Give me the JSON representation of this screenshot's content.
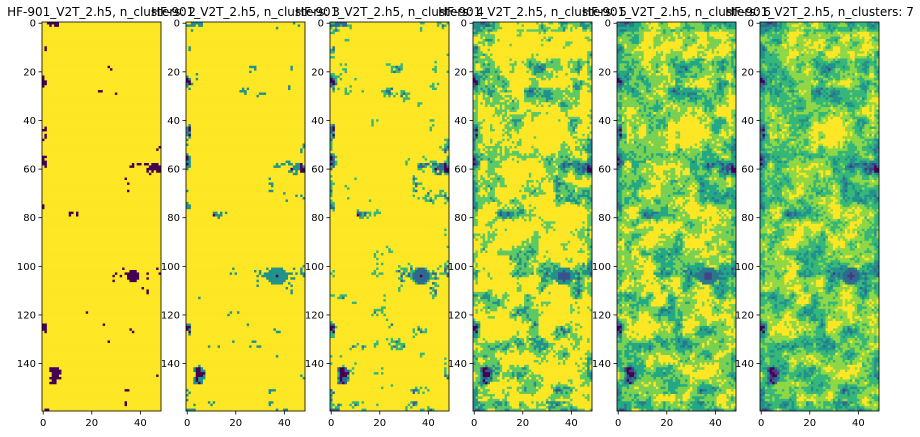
{
  "chart_data": [
    {
      "type": "heatmap",
      "title": "HF-901_V2T_2.h5, n_clusters: 2",
      "n_clusters": 2,
      "xlim": [
        0,
        49
      ],
      "ylim": [
        160,
        0
      ],
      "xticks": [
        "0",
        "20",
        "40"
      ],
      "yticks": [
        "0",
        "20",
        "40",
        "60",
        "80",
        "100",
        "120",
        "140"
      ],
      "palette": [
        "#440154",
        "#fde725"
      ]
    },
    {
      "type": "heatmap",
      "title": "HF-901_V2T_2.h5, n_clusters: 3",
      "n_clusters": 3,
      "xlim": [
        0,
        49
      ],
      "ylim": [
        160,
        0
      ],
      "xticks": [
        "0",
        "20",
        "40"
      ],
      "yticks": [
        "0",
        "20",
        "40",
        "60",
        "80",
        "100",
        "120",
        "140"
      ],
      "palette": [
        "#440154",
        "#21918c",
        "#fde725"
      ]
    },
    {
      "type": "heatmap",
      "title": "HF-901_V2T_2.h5, n_clusters: 4",
      "n_clusters": 4,
      "xlim": [
        0,
        49
      ],
      "ylim": [
        160,
        0
      ],
      "xticks": [
        "0",
        "20",
        "40"
      ],
      "yticks": [
        "0",
        "20",
        "40",
        "60",
        "80",
        "100",
        "120",
        "140"
      ],
      "palette": [
        "#440154",
        "#31688e",
        "#35b779",
        "#fde725"
      ]
    },
    {
      "type": "heatmap",
      "title": "HF-901_V2T_2.h5, n_clusters: 5",
      "n_clusters": 5,
      "xlim": [
        0,
        49
      ],
      "ylim": [
        160,
        0
      ],
      "xticks": [
        "0",
        "20",
        "40"
      ],
      "yticks": [
        "0",
        "20",
        "40",
        "60",
        "80",
        "100",
        "120",
        "140"
      ],
      "palette": [
        "#440154",
        "#3b528b",
        "#21918c",
        "#5ec962",
        "#fde725"
      ]
    },
    {
      "type": "heatmap",
      "title": "HF-901_V2T_2.h5, n_clusters: 6",
      "n_clusters": 6,
      "xlim": [
        0,
        49
      ],
      "ylim": [
        160,
        0
      ],
      "xticks": [
        "0",
        "20",
        "40"
      ],
      "yticks": [
        "0",
        "20",
        "40",
        "60",
        "80",
        "100",
        "120",
        "140"
      ],
      "palette": [
        "#440154",
        "#414487",
        "#2a788e",
        "#22a884",
        "#7ad151",
        "#fde725"
      ]
    },
    {
      "type": "heatmap",
      "title": "HF-901_V2T_2.h5, n_clusters: 7",
      "n_clusters": 7,
      "xlim": [
        0,
        49
      ],
      "ylim": [
        160,
        0
      ],
      "xticks": [
        "0",
        "20",
        "40"
      ],
      "yticks": [
        "0",
        "20",
        "40",
        "60",
        "80",
        "100",
        "120",
        "140"
      ],
      "palette": [
        "#440154",
        "#443983",
        "#31688e",
        "#21918c",
        "#35b779",
        "#8fd744",
        "#fde725"
      ]
    }
  ]
}
